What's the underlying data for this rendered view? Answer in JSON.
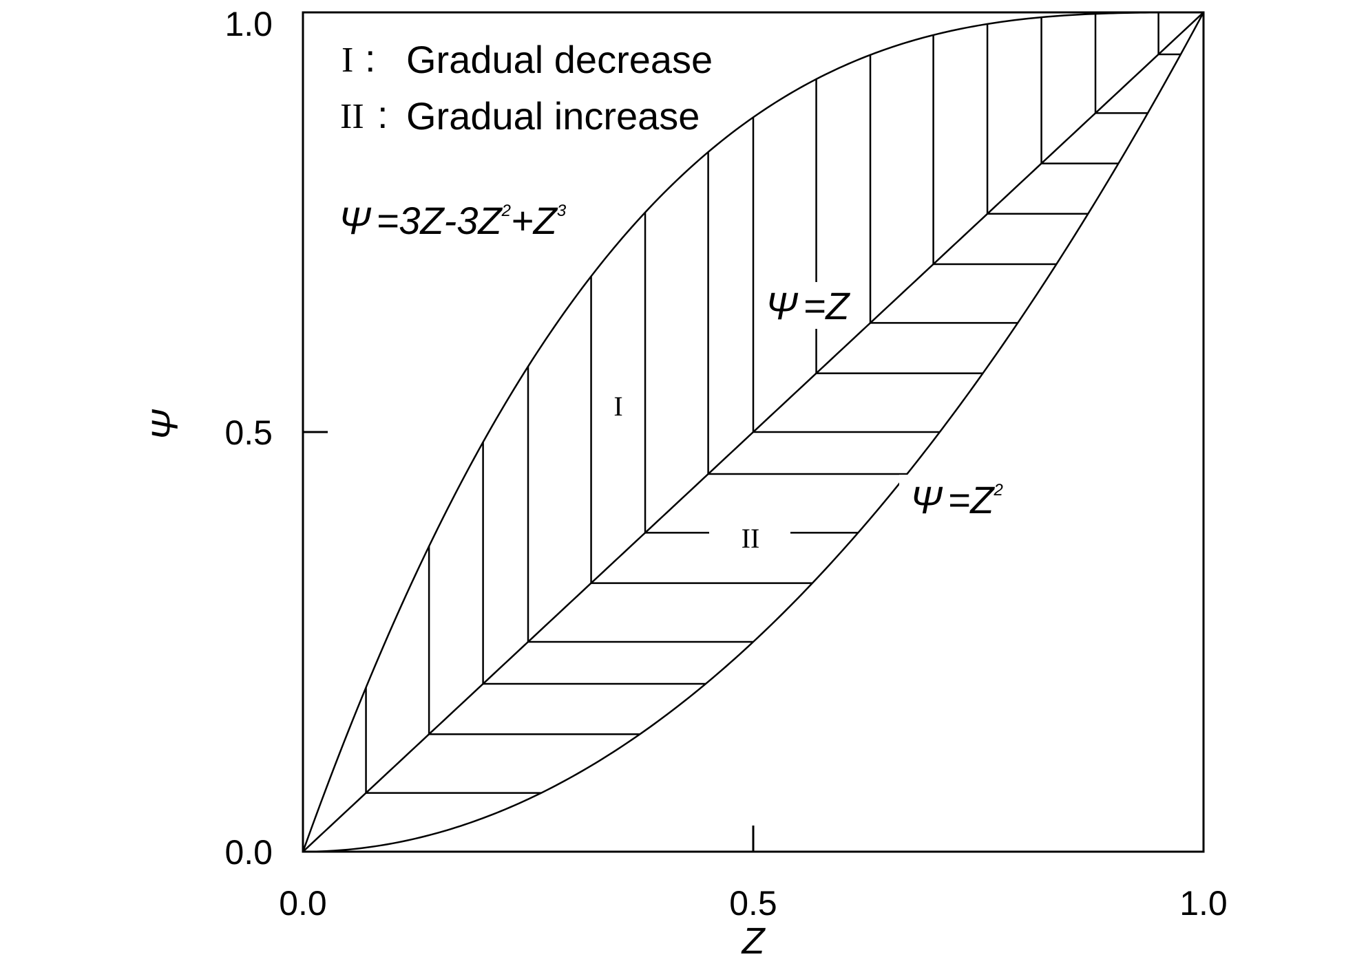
{
  "chart_data": {
    "type": "line",
    "xlabel": "Z",
    "ylabel": "Ψ",
    "xlim": [
      0.0,
      1.0
    ],
    "ylim": [
      0.0,
      1.0
    ],
    "x_ticks": [
      "0.0",
      "0.5",
      "1.0"
    ],
    "y_ticks": [
      "0.0",
      "0.5",
      "1.0"
    ],
    "grid": false,
    "legend": {
      "placement": "top-left",
      "entries": [
        {
          "symbol": "I",
          "text": "Gradual decrease"
        },
        {
          "symbol": "II",
          "text": "Gradual increase"
        }
      ]
    },
    "series": [
      {
        "name": "Ψ=3Z-3Z²+Z³",
        "equation": {
          "lhs": "Ψ",
          "eq": "=",
          "terms": [
            "3Z-3Z",
            "2",
            "+Z",
            "3"
          ]
        },
        "x": [
          0.0,
          0.1,
          0.2,
          0.3,
          0.4,
          0.5,
          0.6,
          0.7,
          0.8,
          0.9,
          1.0
        ],
        "values": [
          0.0,
          0.271,
          0.488,
          0.657,
          0.784,
          0.875,
          0.936,
          0.973,
          0.992,
          0.999,
          1.0
        ]
      },
      {
        "name": "Ψ=Z",
        "equation": {
          "lhs": "Ψ",
          "eq": "=",
          "terms": [
            "Z"
          ]
        },
        "x": [
          0.0,
          0.1,
          0.2,
          0.3,
          0.4,
          0.5,
          0.6,
          0.7,
          0.8,
          0.9,
          1.0
        ],
        "values": [
          0.0,
          0.1,
          0.2,
          0.3,
          0.4,
          0.5,
          0.6,
          0.7,
          0.8,
          0.9,
          1.0
        ]
      },
      {
        "name": "Ψ=Z²",
        "equation": {
          "lhs": "Ψ",
          "eq": "=",
          "terms": [
            "Z",
            "2"
          ]
        },
        "x": [
          0.0,
          0.1,
          0.2,
          0.3,
          0.4,
          0.5,
          0.6,
          0.7,
          0.8,
          0.9,
          1.0
        ],
        "values": [
          0.0,
          0.01,
          0.04,
          0.09,
          0.16,
          0.25,
          0.36,
          0.49,
          0.64,
          0.81,
          1.0
        ]
      }
    ],
    "regions": [
      {
        "label": "I",
        "description_of_hatching": "vertical"
      },
      {
        "label": "II",
        "description_of_hatching": "horizontal"
      }
    ],
    "hatch_z": [
      0.07,
      0.14,
      0.2,
      0.25,
      0.32,
      0.38,
      0.45,
      0.5,
      0.57,
      0.63,
      0.7,
      0.76,
      0.82,
      0.88,
      0.95
    ]
  }
}
